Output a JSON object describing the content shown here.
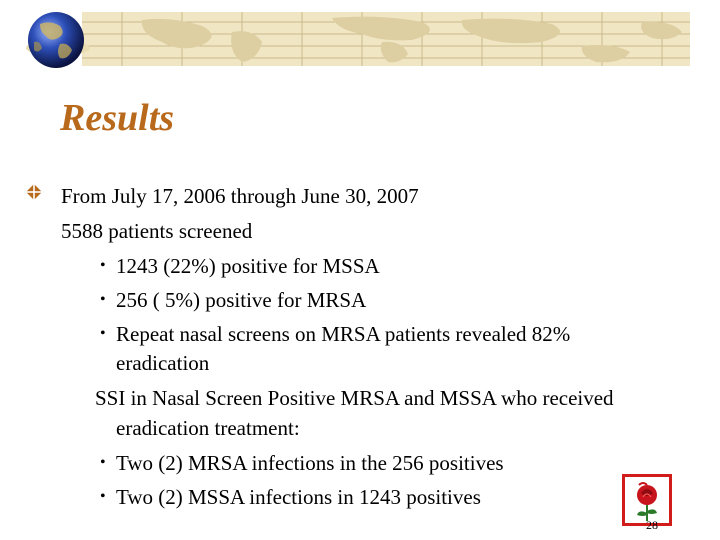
{
  "slide": {
    "title": "Results",
    "lines": {
      "l1": "From July 17, 2006 through June 30, 2007",
      "l2": "5588 patients screened",
      "l3": "1243 (22%) positive for MSSA",
      "l4": "256   ( 5%)  positive for MRSA",
      "l5": "Repeat nasal screens on MRSA patients revealed 82%",
      "l6": "eradication",
      "l7": "SSI in Nasal Screen Positive MRSA and MSSA who received",
      "l8": "eradication treatment:",
      "l9": "Two (2) MRSA infections in the 256 positives",
      "l10": "Two (2) MSSA infections in 1243 positives"
    },
    "bullet_symbol": "•",
    "page_number": "28"
  },
  "colors": {
    "title": "#b8691b",
    "banner": "#f1e6c4",
    "map_lines": "#c9b98a",
    "bullet_icon": "#b8691b",
    "logo_border": "#d21c1c",
    "rose": "#c8141c"
  },
  "icons": {
    "globe": "globe-icon",
    "bullet": "diamond-bullet-icon",
    "logo": "rose-logo-icon"
  }
}
